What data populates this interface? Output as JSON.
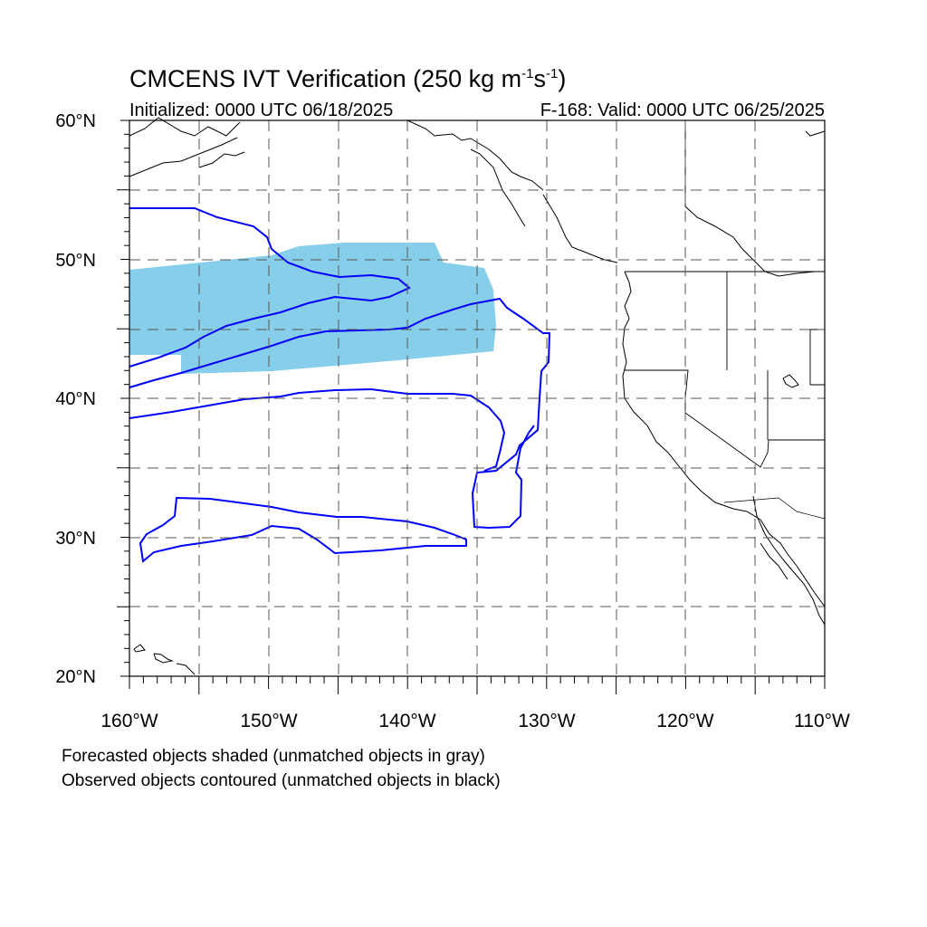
{
  "header": {
    "title_main": "CMCENS IVT Verification (250 kg m",
    "title_exp1": "-1",
    "title_mid": "s",
    "title_exp2": "-1",
    "title_end": ")",
    "initialized": "Initialized: 0000 UTC 06/18/2025",
    "valid": "F-168: Valid: 0000 UTC 06/25/2025"
  },
  "map": {
    "lat_range": [
      20,
      60
    ],
    "lon_range": [
      -160,
      -110
    ],
    "lat_labels": [
      "60°N",
      "50°N",
      "40°N",
      "30°N",
      "20°N"
    ],
    "lon_labels": [
      "160°W",
      "150°W",
      "140°W",
      "130°W",
      "120°W",
      "110°W"
    ],
    "colors": {
      "forecast_fill": "#87ceeb",
      "observed_contour": "#0000ff",
      "coast": "#000000",
      "grid": "#555555"
    }
  },
  "legend": {
    "line1": "Forecasted objects shaded (unmatched objects in gray)",
    "line2": "Observed objects contoured (unmatched objects in black)"
  }
}
